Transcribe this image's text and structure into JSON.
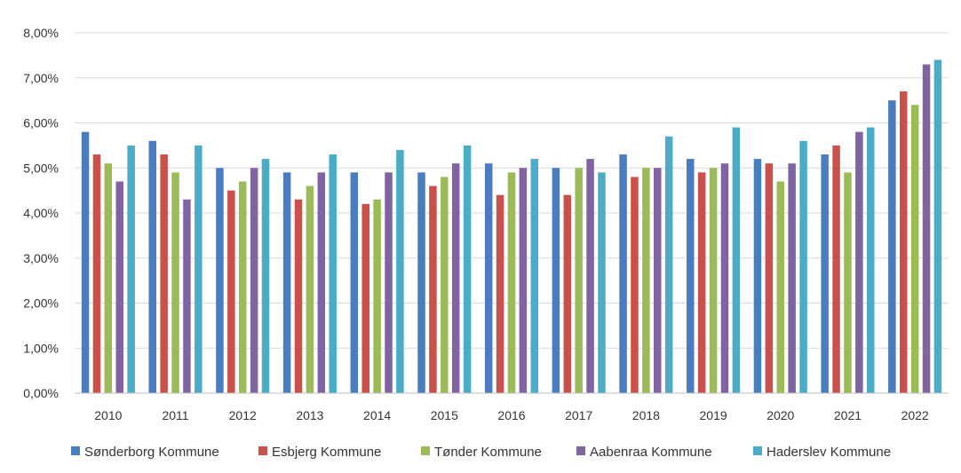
{
  "chart_data": {
    "type": "bar",
    "title": "",
    "xlabel": "",
    "ylabel": "",
    "categories": [
      "2010",
      "2011",
      "2012",
      "2013",
      "2014",
      "2015",
      "2016",
      "2017",
      "2018",
      "2019",
      "2020",
      "2021",
      "2022"
    ],
    "ylim": [
      0,
      8
    ],
    "ytick_values": [
      0,
      1,
      2,
      3,
      4,
      5,
      6,
      7,
      8
    ],
    "ytick_labels": [
      "0,00%",
      "1,00%",
      "2,00%",
      "3,00%",
      "4,00%",
      "5,00%",
      "6,00%",
      "7,00%",
      "8,00%"
    ],
    "grid": true,
    "legend_position": "bottom",
    "series": [
      {
        "name": "Sønderborg Kommune",
        "color": "#4a7cc0",
        "values": [
          5.8,
          5.6,
          5.0,
          4.9,
          4.9,
          4.9,
          5.1,
          5.0,
          5.3,
          5.2,
          5.2,
          5.3,
          6.5
        ]
      },
      {
        "name": "Esbjerg Kommune",
        "color": "#c9504b",
        "values": [
          5.3,
          5.3,
          4.5,
          4.3,
          4.2,
          4.6,
          4.4,
          4.4,
          4.8,
          4.9,
          5.1,
          5.5,
          6.7
        ]
      },
      {
        "name": "Tønder Kommune",
        "color": "#9bbb59",
        "values": [
          5.1,
          4.9,
          4.7,
          4.6,
          4.3,
          4.8,
          4.9,
          5.0,
          5.0,
          5.0,
          4.7,
          4.9,
          6.4
        ]
      },
      {
        "name": "Aabenraa Kommune",
        "color": "#8064a2",
        "values": [
          4.7,
          4.3,
          5.0,
          4.9,
          4.9,
          5.1,
          5.0,
          5.2,
          5.0,
          5.1,
          5.1,
          5.8,
          7.3
        ]
      },
      {
        "name": "Haderslev Kommune",
        "color": "#4bacc6",
        "values": [
          5.5,
          5.5,
          5.2,
          5.3,
          5.4,
          5.5,
          5.2,
          4.9,
          5.7,
          5.9,
          5.6,
          5.9,
          7.4
        ]
      }
    ]
  }
}
